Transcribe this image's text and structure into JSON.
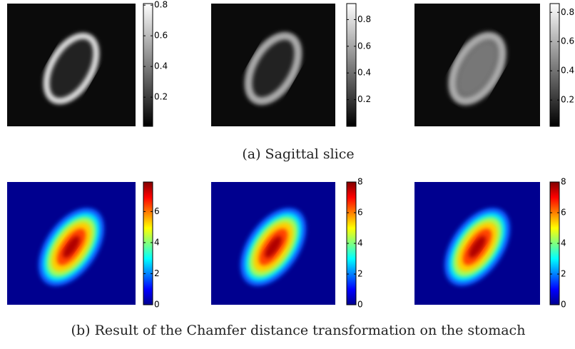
{
  "figure_a": {
    "caption": "(a) Sagittal slice",
    "colormap": "gray",
    "colorbars": [
      {
        "lim": [
          0.01,
          0.81
        ],
        "ticks": [
          0.2,
          0.4,
          0.6,
          0.8
        ]
      },
      {
        "lim": [
          0,
          0.92
        ],
        "ticks": [
          0.2,
          0.4,
          0.6,
          0.8
        ]
      },
      {
        "lim": [
          0.02,
          0.86
        ],
        "ticks": [
          0.2,
          0.4,
          0.6,
          0.8
        ]
      }
    ]
  },
  "figure_b": {
    "caption": "(b) Result of the Chamfer distance transformation on the stomach",
    "colormap": "jet",
    "colorbars": [
      {
        "lim": [
          0,
          7.9
        ],
        "ticks": [
          0,
          2,
          4,
          6
        ]
      },
      {
        "lim": [
          0,
          8
        ],
        "ticks": [
          0,
          2,
          4,
          6,
          8
        ]
      },
      {
        "lim": [
          0,
          8
        ],
        "ticks": [
          0,
          2,
          4,
          6,
          8
        ]
      }
    ]
  }
}
